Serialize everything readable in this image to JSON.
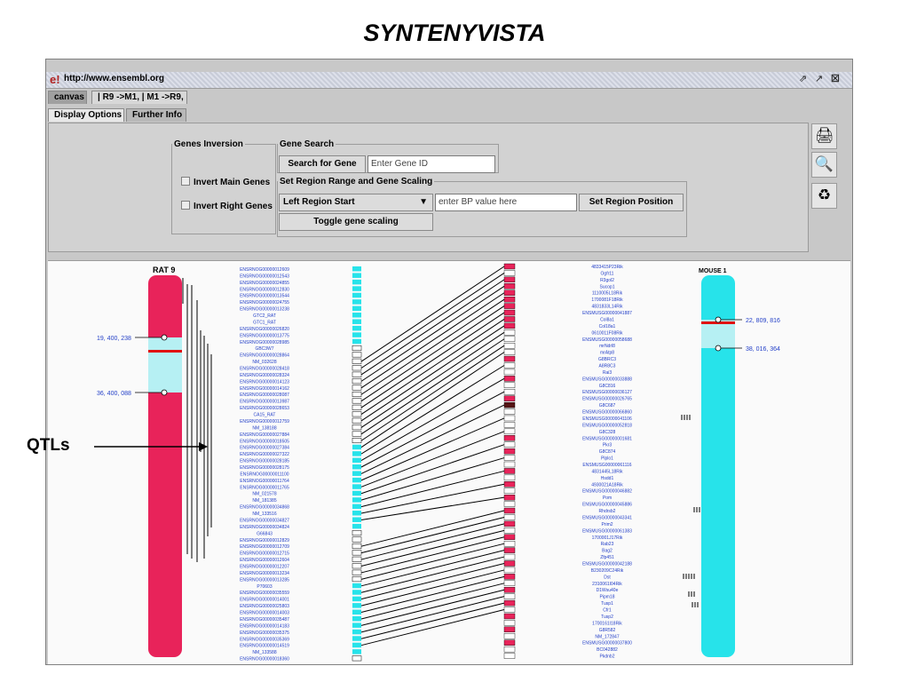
{
  "slide_title": "SYNTENYVISTA",
  "qtl_label": "QTLs",
  "window": {
    "url": "http://www.ensembl.org",
    "tabs": [
      "canvas",
      "| R9 ->M1, | M1 ->R9,"
    ],
    "subtabs": [
      "Display Options",
      "Further Info"
    ]
  },
  "options": {
    "genes_inversion_legend": "Genes Inversion",
    "invert_main": "Invert Main Genes",
    "invert_right": "Invert Right Genes",
    "gene_search_legend": "Gene Search",
    "search_button": "Search for Gene",
    "search_placeholder": "Enter Gene ID",
    "region_legend": "Set Region Range and Gene Scaling",
    "region_select": "Left Region Start",
    "bp_placeholder": "enter BP value here",
    "set_region_button": "Set Region Position",
    "toggle_button": "Toggle gene scaling"
  },
  "icons": [
    "printer-icon",
    "magnifier-icon",
    "recycle-bin-icon"
  ],
  "colors": {
    "rat": "#e8235a",
    "mouse": "#27e3ea",
    "highlight": "#b6f0f3",
    "marker": "#e01010"
  },
  "left_chrom": {
    "name": "RAT 9",
    "labels": [
      "19, 400, 238",
      "36, 400, 088"
    ]
  },
  "right_chrom": {
    "name": "MOUSE 1",
    "labels": [
      "22, 809, 816",
      "38, 016, 364"
    ]
  },
  "left_genes": [
    "ENSRNOG00000012609",
    "ENSRNOG00000012543",
    "ENSRNOG00000024855",
    "ENSRNOG00000012830",
    "ENSRNOG00000013544",
    "ENSRNOG00000024755",
    "ENSRNOG00000013238",
    "GTC2_RAT",
    "GTC1_RAT",
    "ENSRNOG00000026820",
    "ENSRNOG00000013775",
    "ENSRNOG00000028985",
    "GBC3W7",
    "ENSRNOG00000028864",
    "NM_032628",
    "ENSRNOG00000028418",
    "ENSRNOG00000028324",
    "ENSRNOG00000014123",
    "ENSRNOG00000014162",
    "ENSRNOG00000028087",
    "ENSRNOG00000013987",
    "ENSRNOG00000028653",
    "CA15_RAT",
    "ENSRNOG00000012759",
    "NM_138188",
    "ENSRNOG00000027884",
    "ENSRNOG00000018505",
    "ENSRNOG00000027384",
    "ENSRNOG00000027322",
    "ENSRNOG00000028185",
    "ENSRNOG00000028175",
    "ENSRNOG00000011100",
    "ENSRNOG00000011764",
    "ENSRNOG00000011765",
    "NM_021578",
    "NM_181385",
    "ENSRNOG00000034868",
    "NM_133516",
    "ENSRNOG00000034827",
    "ENSRNOG00000034824",
    "G66843",
    "ENSRNOG00000012829",
    "ENSRNOG00000012709",
    "ENSRNOG00000012715",
    "ENSRNOG00000012604",
    "ENSRNOG00000012207",
    "ENSRNOG00000013234",
    "ENSRNOG00000013285",
    "P70603",
    "ENSRNOG00000035559",
    "ENSRNOG00000014001",
    "ENSRNOG00000025803",
    "ENSRNOG00000014003",
    "ENSRNOG00000035487",
    "ENSRNOG00000014183",
    "ENSRNOG00000035375",
    "ENSRNOG00000035369",
    "ENSRNOG00000014519",
    "NM_133588",
    "ENSRNOG00000018360"
  ],
  "right_genes": [
    "4833415P23Rik",
    "Ogfr11",
    "R3gol2",
    "Sucop1",
    "1110005L18Rik",
    "1700081F18Rik",
    "4831833L14Rik",
    "ENSMUSG00000041887",
    "Col8a1",
    "Col18a1",
    "0610011F08Rik",
    "ENSMUSG00000058688",
    "mrNdrl8",
    "mrAtp8",
    "G8BRC3",
    "A8R8C3",
    "Rai3",
    "ENSMUSG00000033888",
    "G8C816",
    "ENSMUSG00000036127",
    "ENSMUSG00000026765",
    "G8C687",
    "ENSMUSG00000066860",
    "ENSMUSG00000041106",
    "ENSMUSG00000052818",
    "G8C328",
    "ENSMUSG00000001681",
    "Pkr3",
    "G8C874",
    "Plplo1",
    "ENSMUSG00000061116",
    "4831445L18Rik",
    "Hsdd1",
    "4930021A18Rik",
    "ENSMUSG00000046882",
    "Pom",
    "ENSMUSG00000045886",
    "Rhdrsb2",
    "ENSMUSG00000043341",
    "Prim2",
    "ENSMUSG00000061383",
    "1700001J17Rik",
    "Rab23",
    "Bag2",
    "Zfp451",
    "ENSMUSG00000042188",
    "B230209C24Rik",
    "Dst",
    "2310061I04Rik",
    "D1Wsu40e",
    "Pipm18",
    "Tusp1",
    "Cfr1",
    "Tusp2",
    "1700161I18Rik",
    "G8R582",
    "NM_172847",
    "ENSMUSG00000037800",
    "BC042882",
    "Pkdnb2"
  ]
}
